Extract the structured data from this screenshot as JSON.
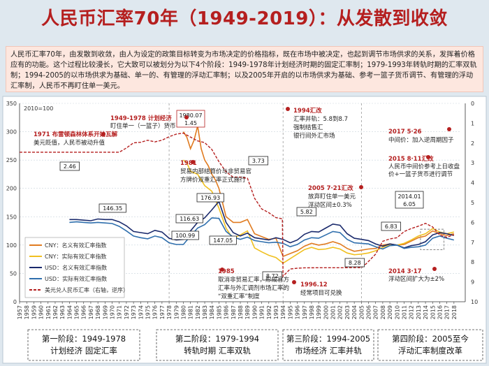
{
  "title": "人民币汇率70年（1949-2019）：从发散到收敛",
  "intro": "人民币汇率70年，由发散到收敛，由人为设定的政策目标转变为市场决定的价格指标，既在市场中被决定，也起到调节市场供求的关系，发挥着价格应有的功能。这个过程比较漫长，它大致可以被划分为以下4个阶段：1949-1978年计划经济时期的固定汇率制；1979-1993年转轨时期的汇率双轨制；1994-2005的以市场供求为基础、单一的、有管理的浮动汇率制；以及2005年开启的以市场供求为基础、参考一篮子货币调节、有管理的浮动汇率制，人民币不再盯住单一美元。",
  "chart_data": {
    "type": "line",
    "index_note": "2010=100",
    "ylim_left": [
      0,
      350
    ],
    "yticks_left": [
      "0",
      "50",
      "100",
      "150",
      "200",
      "250",
      "300",
      "350"
    ],
    "ylim_right_inverted": [
      0,
      10
    ],
    "yticks_right": [
      "0",
      "1",
      "2",
      "3",
      "4",
      "5",
      "6",
      "7",
      "8",
      "9",
      "10"
    ],
    "x_ticks": [
      "1957",
      "1958",
      "1959",
      "1960",
      "1961",
      "1962",
      "1963",
      "1964",
      "1965",
      "1966",
      "1967",
      "1968",
      "1969",
      "1970",
      "1971",
      "1972",
      "1973",
      "1974",
      "1975",
      "1976",
      "1977",
      "1978",
      "1979",
      "1980",
      "1981",
      "1982",
      "1983",
      "1984",
      "1985",
      "1986",
      "1987",
      "1988",
      "1989",
      "1990",
      "1991",
      "1992",
      "1993",
      "1994",
      "1995",
      "1996",
      "1997",
      "1998",
      "1999",
      "2000",
      "2001",
      "2002",
      "2003",
      "2004",
      "2005",
      "2006",
      "2007",
      "2008",
      "2009",
      "2010",
      "2011",
      "2012",
      "2013",
      "2014",
      "2015",
      "2016",
      "2017",
      "2018"
    ],
    "series": [
      {
        "name": "CNY：名义有效汇率指数",
        "color": "#e07b20",
        "axis": "left",
        "points": [
          [
            1980,
            300
          ],
          [
            1980.5,
            290
          ],
          [
            1981,
            270
          ],
          [
            1981.5,
            285
          ],
          [
            1982,
            310
          ],
          [
            1982.5,
            270
          ],
          [
            1983,
            250
          ],
          [
            1983.5,
            240
          ],
          [
            1984,
            225
          ],
          [
            1984.5,
            215
          ],
          [
            1985,
            200
          ],
          [
            1985.5,
            175
          ],
          [
            1986,
            150
          ],
          [
            1986.5,
            145
          ],
          [
            1987,
            140
          ],
          [
            1988,
            140
          ],
          [
            1989,
            145
          ],
          [
            1990,
            120
          ],
          [
            1991,
            115
          ],
          [
            1992,
            110
          ],
          [
            1993,
            112
          ],
          [
            1994,
            80
          ],
          [
            1995,
            85
          ],
          [
            1996,
            90
          ],
          [
            1997,
            98
          ],
          [
            1998,
            103
          ],
          [
            1999,
            100
          ],
          [
            2000,
            102
          ],
          [
            2001,
            106
          ],
          [
            2002,
            102
          ],
          [
            2003,
            94
          ],
          [
            2004,
            89
          ],
          [
            2005,
            91
          ],
          [
            2006,
            93
          ],
          [
            2007,
            94
          ],
          [
            2008,
            100
          ],
          [
            2009,
            102
          ],
          [
            2010,
            100
          ],
          [
            2011,
            101
          ],
          [
            2012,
            107
          ],
          [
            2013,
            113
          ],
          [
            2014,
            116
          ],
          [
            2015,
            125
          ],
          [
            2016,
            120
          ],
          [
            2017,
            117
          ],
          [
            2018,
            120
          ]
        ]
      },
      {
        "name": "CNY：实际有效汇率指数",
        "color": "#f0c020",
        "axis": "left",
        "points": [
          [
            1980,
            250
          ],
          [
            1980.5,
            245
          ],
          [
            1981,
            230
          ],
          [
            1982,
            225
          ],
          [
            1983,
            205
          ],
          [
            1984,
            195
          ],
          [
            1985,
            165
          ],
          [
            1986,
            130
          ],
          [
            1986.5,
            120
          ],
          [
            1987,
            112
          ],
          [
            1988,
            118
          ],
          [
            1989,
            125
          ],
          [
            1990,
            95
          ],
          [
            1991,
            88
          ],
          [
            1992,
            82
          ],
          [
            1993,
            78
          ],
          [
            1994,
            68
          ],
          [
            1995,
            76
          ],
          [
            1996,
            84
          ],
          [
            1997,
            92
          ],
          [
            1998,
            96
          ],
          [
            1999,
            92
          ],
          [
            2000,
            93
          ],
          [
            2001,
            96
          ],
          [
            2002,
            93
          ],
          [
            2003,
            86
          ],
          [
            2004,
            83
          ],
          [
            2005,
            84
          ],
          [
            2006,
            86
          ],
          [
            2007,
            90
          ],
          [
            2008,
            96
          ],
          [
            2009,
            101
          ],
          [
            2010,
            100
          ],
          [
            2011,
            103
          ],
          [
            2012,
            109
          ],
          [
            2013,
            116
          ],
          [
            2014,
            120
          ],
          [
            2015,
            129
          ],
          [
            2016,
            123
          ],
          [
            2017,
            120
          ],
          [
            2018,
            123
          ]
        ]
      },
      {
        "name": "USD：名义有效汇率指数",
        "color": "#1a2a6c",
        "axis": "left",
        "points": [
          [
            1964,
            145
          ],
          [
            1965,
            145
          ],
          [
            1966,
            144
          ],
          [
            1967,
            143
          ],
          [
            1968,
            146
          ],
          [
            1969,
            145
          ],
          [
            1970,
            145
          ],
          [
            1971,
            141
          ],
          [
            1972,
            134
          ],
          [
            1973,
            124
          ],
          [
            1974,
            122
          ],
          [
            1975,
            120
          ],
          [
            1976,
            126
          ],
          [
            1977,
            123
          ],
          [
            1978,
            112
          ],
          [
            1979,
            109
          ],
          [
            1980,
            110
          ],
          [
            1981,
            125
          ],
          [
            1982,
            140
          ],
          [
            1983,
            148
          ],
          [
            1984,
            162
          ],
          [
            1985,
            177
          ],
          [
            1986,
            140
          ],
          [
            1987,
            122
          ],
          [
            1988,
            116
          ],
          [
            1989,
            121
          ],
          [
            1990,
            113
          ],
          [
            1991,
            111
          ],
          [
            1992,
            109
          ],
          [
            1993,
            113
          ],
          [
            1994,
            110
          ],
          [
            1995,
            104
          ],
          [
            1996,
            109
          ],
          [
            1997,
            119
          ],
          [
            1998,
            124
          ],
          [
            1999,
            123
          ],
          [
            2000,
            130
          ],
          [
            2001,
            137
          ],
          [
            2002,
            135
          ],
          [
            2003,
            120
          ],
          [
            2004,
            112
          ],
          [
            2005,
            110
          ],
          [
            2006,
            108
          ],
          [
            2007,
            102
          ],
          [
            2008,
            98
          ],
          [
            2009,
            102
          ],
          [
            2010,
            100
          ],
          [
            2011,
            95
          ],
          [
            2012,
            99
          ],
          [
            2013,
            101
          ],
          [
            2014,
            106
          ],
          [
            2015,
            118
          ],
          [
            2016,
            122
          ],
          [
            2017,
            120
          ],
          [
            2018,
            117
          ]
        ]
      },
      {
        "name": "USD：实际有效汇率指数",
        "color": "#2f6fad",
        "axis": "left",
        "points": [
          [
            1964,
            140
          ],
          [
            1965,
            141
          ],
          [
            1966,
            140
          ],
          [
            1967,
            139
          ],
          [
            1968,
            140
          ],
          [
            1969,
            139
          ],
          [
            1970,
            138
          ],
          [
            1971,
            133
          ],
          [
            1972,
            125
          ],
          [
            1973,
            116
          ],
          [
            1974,
            113
          ],
          [
            1975,
            111
          ],
          [
            1976,
            116
          ],
          [
            1977,
            113
          ],
          [
            1978,
            104
          ],
          [
            1979,
            101
          ],
          [
            1980,
            101
          ],
          [
            1981,
            116
          ],
          [
            1982,
            130
          ],
          [
            1983,
            136
          ],
          [
            1984,
            148
          ],
          [
            1985,
            147
          ],
          [
            1986,
            124
          ],
          [
            1987,
            114
          ],
          [
            1988,
            110
          ],
          [
            1989,
            114
          ],
          [
            1990,
            108
          ],
          [
            1991,
            106
          ],
          [
            1992,
            104
          ],
          [
            1993,
            105
          ],
          [
            1994,
            103
          ],
          [
            1995,
            97
          ],
          [
            1996,
            101
          ],
          [
            1997,
            109
          ],
          [
            1998,
            113
          ],
          [
            1999,
            112
          ],
          [
            2000,
            118
          ],
          [
            2001,
            124
          ],
          [
            2002,
            122
          ],
          [
            2003,
            110
          ],
          [
            2004,
            104
          ],
          [
            2005,
            103
          ],
          [
            2006,
            102
          ],
          [
            2007,
            97
          ],
          [
            2008,
            93
          ],
          [
            2009,
            99
          ],
          [
            2010,
            100
          ],
          [
            2011,
            94
          ],
          [
            2012,
            96
          ],
          [
            2013,
            97
          ],
          [
            2014,
            100
          ],
          [
            2015,
            112
          ],
          [
            2016,
            116
          ],
          [
            2017,
            112
          ],
          [
            2018,
            109
          ]
        ]
      },
      {
        "name": "美元兑人民币汇率（右轴，逆序）",
        "color": "#b51f1f",
        "axis": "right",
        "dashed": true,
        "points": [
          [
            1957,
            2.46
          ],
          [
            1970,
            2.46
          ],
          [
            1971,
            2.46
          ],
          [
            1972,
            2.25
          ],
          [
            1973,
            1.99
          ],
          [
            1974,
            1.96
          ],
          [
            1975,
            1.86
          ],
          [
            1976,
            1.94
          ],
          [
            1977,
            1.86
          ],
          [
            1978,
            1.68
          ],
          [
            1979,
            1.55
          ],
          [
            1980,
            1.5
          ],
          [
            1981,
            1.7
          ],
          [
            1982,
            1.89
          ],
          [
            1983,
            1.98
          ],
          [
            1984,
            2.32
          ],
          [
            1985,
            2.94
          ],
          [
            1986,
            3.45
          ],
          [
            1987,
            3.72
          ],
          [
            1988,
            3.72
          ],
          [
            1989,
            3.77
          ],
          [
            1990,
            4.78
          ],
          [
            1991,
            5.32
          ],
          [
            1992,
            5.51
          ],
          [
            1993,
            5.76
          ],
          [
            1993.9,
            5.82
          ],
          [
            1994,
            8.72
          ],
          [
            1995,
            8.35
          ],
          [
            1996,
            8.31
          ],
          [
            1997,
            8.29
          ],
          [
            2005,
            8.28
          ],
          [
            2005.6,
            8.11
          ],
          [
            2006,
            7.97
          ],
          [
            2007,
            7.6
          ],
          [
            2008,
            6.95
          ],
          [
            2009,
            6.83
          ],
          [
            2010,
            6.77
          ],
          [
            2011,
            6.46
          ],
          [
            2012,
            6.31
          ],
          [
            2013,
            6.19
          ],
          [
            2014,
            6.05
          ],
          [
            2015,
            6.23
          ],
          [
            2016,
            6.64
          ],
          [
            2017,
            6.75
          ],
          [
            2018,
            6.62
          ]
        ]
      }
    ],
    "labels": [
      {
        "text": "2010=100"
      },
      {
        "text": "1980.07"
      },
      {
        "text": "1.45"
      },
      {
        "text": "2.46"
      },
      {
        "text": "3.73"
      },
      {
        "text": "146.35"
      },
      {
        "text": "176.93"
      },
      {
        "text": "116.63"
      },
      {
        "text": "147.05"
      },
      {
        "text": "100.99"
      },
      {
        "text": "5.82"
      },
      {
        "text": "8.72"
      },
      {
        "text": "8.28"
      },
      {
        "text": "6.83"
      },
      {
        "text": "2014.01"
      },
      {
        "text": "6.05"
      }
    ],
    "annotations": [
      {
        "lines": [
          "1949-1978 计划经济",
          "盯住单一（一篮子）货币"
        ]
      },
      {
        "lines": [
          "1971 布雷顿森林体系开始瓦解",
          "美元贬值，人民币被动升值"
        ]
      },
      {
        "lines": [
          "1981",
          "贸易内部结算价与非贸易官",
          "方牌价双重汇率正式施行"
        ]
      },
      {
        "lines": [
          "1985",
          "取消非贸易汇率，形成官方",
          "汇率与外汇调剂市场汇率的",
          "“双重汇率”制度"
        ]
      },
      {
        "lines": [
          "1994汇改",
          "汇率并轨：5.8到8.7",
          "强制结售汇",
          "银行间外汇市场"
        ]
      },
      {
        "lines": [
          "2005 7·21汇改",
          "放弃盯住单一美元",
          "浮动区间±0.3%"
        ]
      },
      {
        "lines": [
          "1996.12",
          "经常项目可兑换"
        ]
      },
      {
        "lines": [
          "2017 5·26",
          "中间价：加入逆周期因子"
        ]
      },
      {
        "lines": [
          "2015 8·11汇改",
          "人民币中间价参考上日收盘",
          "价+一篮子货币进行调节"
        ]
      },
      {
        "lines": [
          "2014 3·17",
          "浮动区间扩大为±2%"
        ]
      }
    ],
    "phases": [
      {
        "title": "第一阶段：1949-1978",
        "sub": "计划经济 固定汇率"
      },
      {
        "title": "第二阶段：1979-1994",
        "sub": "转轨时期 汇率双轨"
      },
      {
        "title": "第三阶段：1994-2005",
        "sub": "市场经济 汇率并轨"
      },
      {
        "title": "第四阶段：2005至今",
        "sub": "浮动汇率制度改革"
      }
    ]
  },
  "colors": {
    "title": "#b51f1f",
    "accent_red": "#b51f1f",
    "intro_bg": "#fde7df",
    "chart_bg": "#ffffff"
  }
}
